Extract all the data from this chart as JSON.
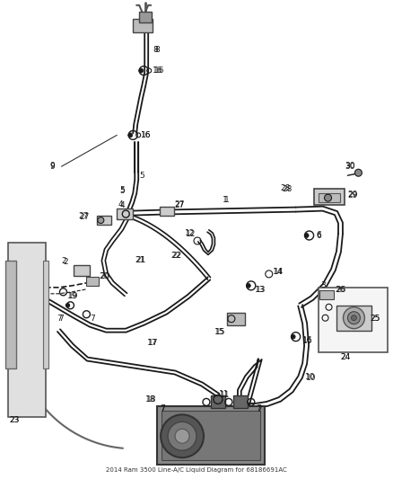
{
  "title": "2014 Ram 3500 Line-A/C Liquid Diagram for 68186691AC",
  "bg_color": "#ffffff",
  "line_color": "#1a1a1a",
  "fig_width": 4.38,
  "fig_height": 5.33,
  "dpi": 100
}
